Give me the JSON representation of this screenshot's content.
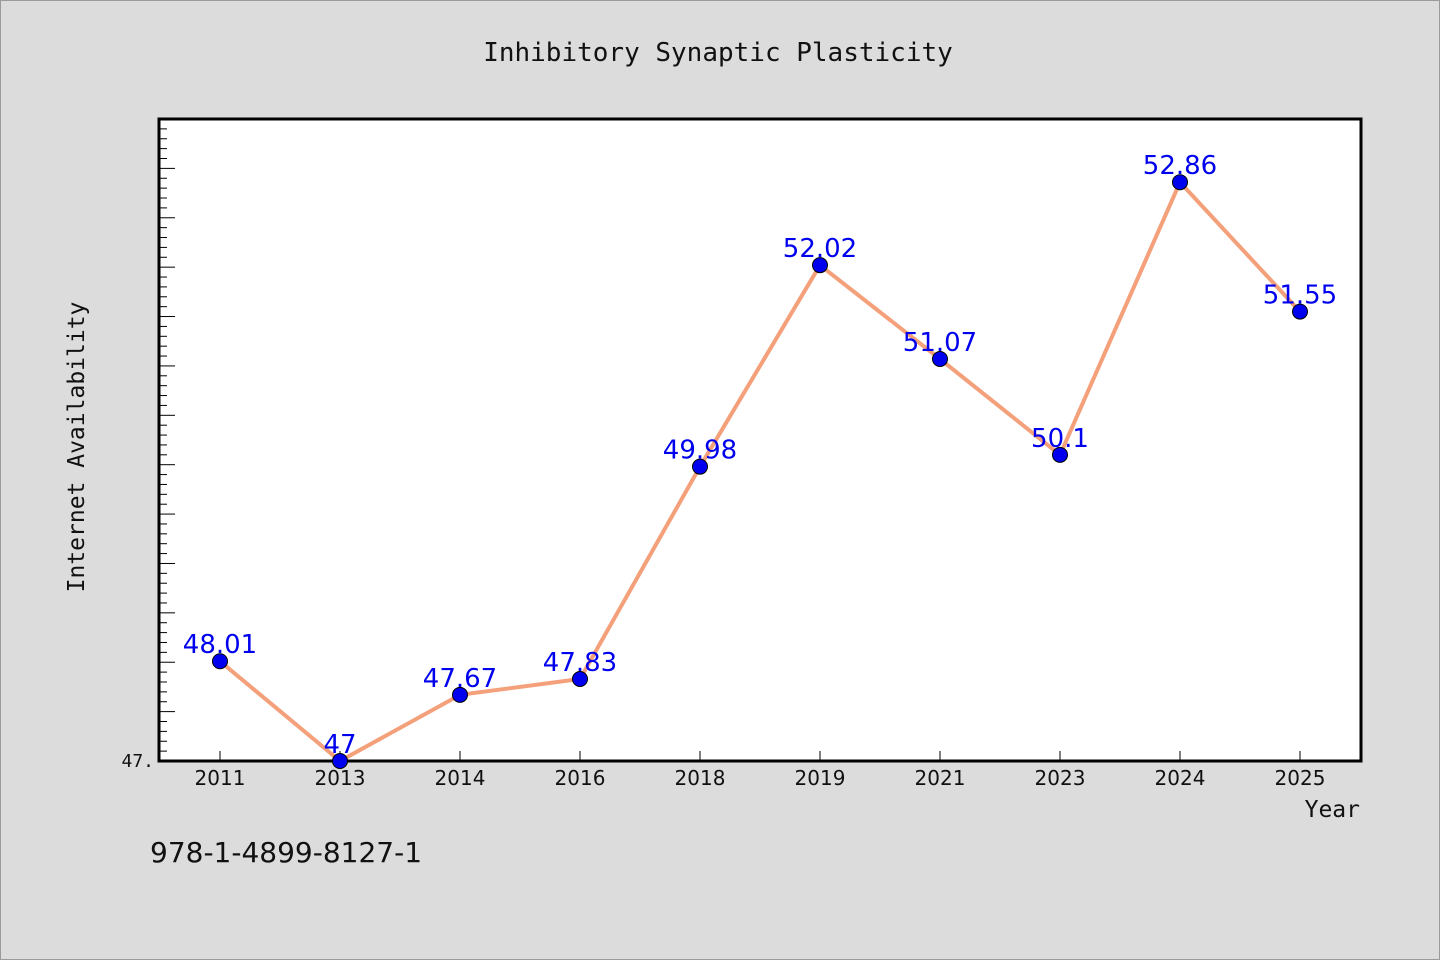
{
  "chart_data": {
    "type": "line",
    "title": "Inhibitory Synaptic Plasticity",
    "xlabel": "Year",
    "ylabel": "Internet Availability",
    "categories": [
      "2011",
      "2013",
      "2014",
      "2016",
      "2018",
      "2019",
      "2021",
      "2023",
      "2024",
      "2025"
    ],
    "series": [
      {
        "values": [
          48.01,
          47,
          47.67,
          47.83,
          49.98,
          52.02,
          51.07,
          50.1,
          52.86,
          51.55
        ]
      }
    ],
    "data_labels": [
      "48.01",
      "47",
      "47.67",
      "47.83",
      "49.98",
      "52.02",
      "51.07",
      "50.1",
      "52.86",
      "51.55"
    ],
    "ytick_label": "47.",
    "ylim": [
      47,
      53.5
    ],
    "grid": false,
    "line_color": "#f4a07a",
    "marker_color": "#0000ee",
    "label_color": "#0000ee"
  },
  "footer": {
    "isbn": "978-1-4899-8127-1"
  }
}
